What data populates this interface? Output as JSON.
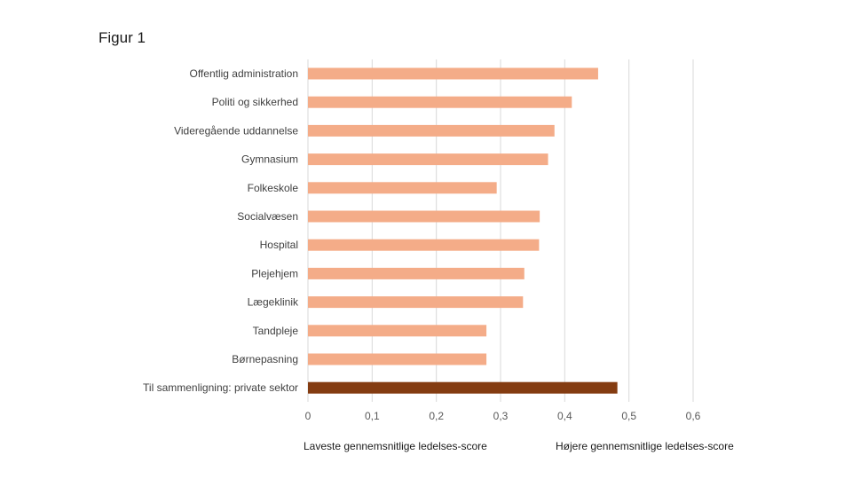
{
  "figure_title": "Figur 1",
  "footer": {
    "left": "Laveste gennemsnitlige ledelses-score",
    "right": "Højere gennemsnitlige ledelses-score"
  },
  "colors": {
    "bar": "#f4ac88",
    "highlight": "#843c11",
    "grid": "#d9d9d9"
  },
  "chart_data": {
    "type": "bar",
    "orientation": "horizontal",
    "categories": [
      "Offentlig administration",
      "Politi og sikkerhed",
      "Videregående uddannelse",
      "Gymnasium",
      "Folkeskole",
      "Socialvæsen",
      "Hospital",
      "Plejehjem",
      "Lægeklinik",
      "Tandpleje",
      "Børnepasning",
      "Til sammenligning: private sektor"
    ],
    "values": [
      0.452,
      0.411,
      0.384,
      0.374,
      0.294,
      0.361,
      0.36,
      0.337,
      0.335,
      0.278,
      0.278,
      0.482
    ],
    "highlight_index": 11,
    "xlim": [
      0,
      0.6
    ],
    "xticks": [
      0,
      0.1,
      0.2,
      0.3,
      0.4,
      0.5,
      0.6
    ],
    "xtick_labels": [
      "0",
      "0,1",
      "0,2",
      "0,3",
      "0,4",
      "0,5",
      "0,6"
    ],
    "grid": "vertical",
    "title": "",
    "xlabel": "",
    "ylabel": ""
  }
}
